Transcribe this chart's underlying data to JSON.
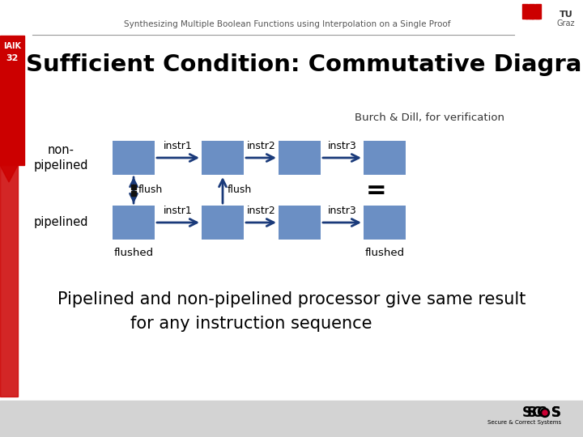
{
  "title_small": "Synthesizing Multiple Boolean Functions using Interpolation on a Single Proof",
  "title_big": "Sufficient Condition: Commutative Diagram",
  "slide_number": "32",
  "iaik_label": "IAIK",
  "burch_dill_text": "Burch & Dill, for verification",
  "non_pipelined_label": "non-\npipelined",
  "pipelined_label": "pipelined",
  "box_color": "#6B8FC4",
  "arrow_color": "#1A3A7A",
  "flush_dot_color": "#111111",
  "flushed_label": "flushed",
  "instr_labels_top": [
    "instr1",
    "instr2",
    "instr3"
  ],
  "instr_labels_bottom": [
    "instr1",
    "instr2",
    "instr3"
  ],
  "flush_labels": [
    "flush",
    "flush"
  ],
  "bottom_text_line1": "Pipelined and non-pipelined processor give same result",
  "bottom_text_line2": "for any instruction sequence",
  "bg_color": "#FFFFFF",
  "footer_color": "#D3D3D3",
  "header_line_color": "#999999",
  "red_color": "#CC0000",
  "iaik_bar_color": "#CC0000"
}
